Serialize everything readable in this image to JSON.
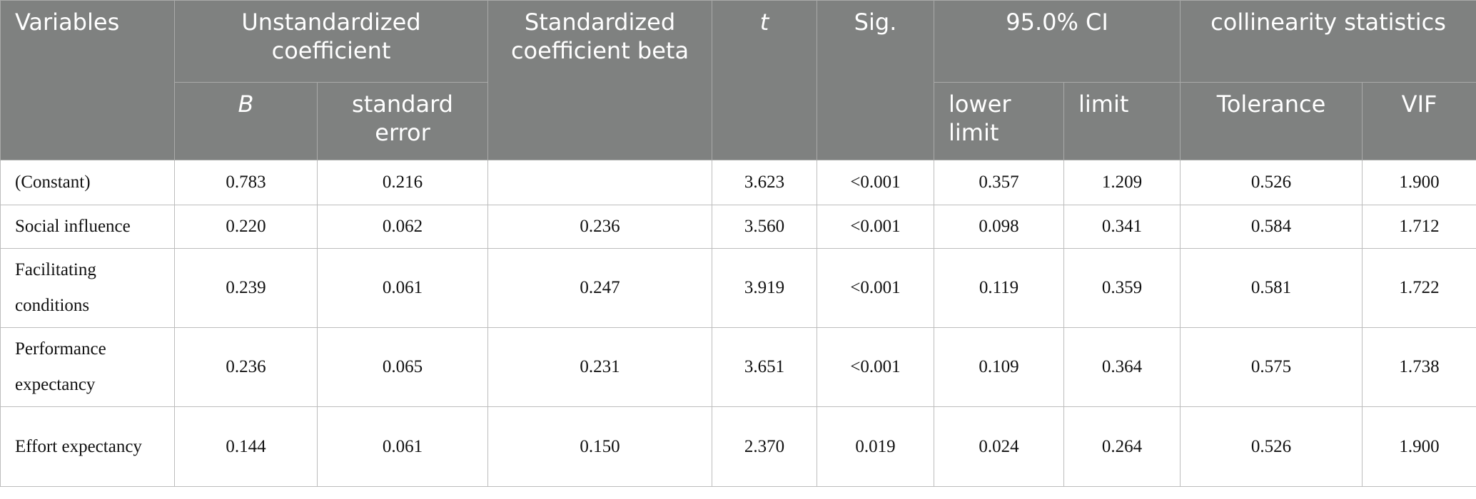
{
  "table": {
    "header": {
      "variables": "Variables",
      "unstandardized": "Unstandardized coefficient",
      "b": "B",
      "standard_error": "standard error",
      "beta": "Standardized coefficient beta",
      "t": "t",
      "sig": "Sig.",
      "ci": "95.0% CI",
      "lower": "lower limit",
      "upper": "limit",
      "collinearity": "collinearity statistics",
      "tolerance": "Tolerance",
      "vif": "VIF"
    },
    "rows": [
      [
        "(Constant)",
        "0.783",
        "0.216",
        null,
        "3.623",
        "<0.001",
        "0.357",
        "1.209",
        "0.526",
        "1.900"
      ],
      [
        "Social influence",
        "0.220",
        "0.062",
        "0.236",
        "3.560",
        "<0.001",
        "0.098",
        "0.341",
        "0.584",
        "1.712"
      ],
      [
        "Facilitating conditions",
        "0.239",
        "0.061",
        "0.247",
        "3.919",
        "<0.001",
        "0.119",
        "0.359",
        "0.581",
        "1.722"
      ],
      [
        "Performance expectancy",
        "0.236",
        "0.065",
        "0.231",
        "3.651",
        "<0.001",
        "0.109",
        "0.364",
        "0.575",
        "1.738"
      ],
      [
        "Effort expectancy",
        "0.144",
        "0.061",
        "0.150",
        "2.370",
        "0.019",
        "0.024",
        "0.264",
        "0.526",
        "1.900"
      ]
    ]
  }
}
